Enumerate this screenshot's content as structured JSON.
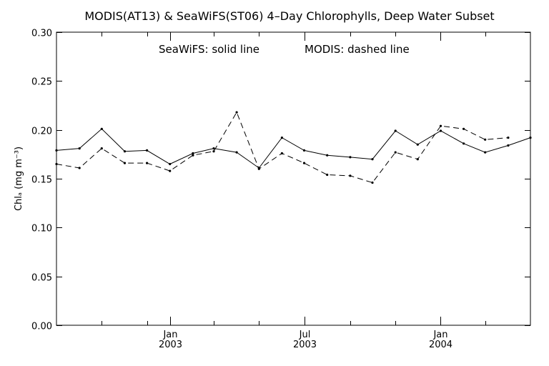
{
  "chart_data": {
    "type": "line",
    "title": "MODIS(AT13) & SeaWiFS(ST06) 4–Day Chlorophylls, Deep Water Subset",
    "annotation_left": "SeaWiFS: solid line",
    "annotation_right": "MODIS: dashed line",
    "ylabel": "Chlₐ (mg m⁻³)",
    "ylim": [
      0.0,
      0.3
    ],
    "xlim": [
      "2002-08-01",
      "2004-05-01"
    ],
    "grid": false,
    "y_ticks": [
      "0.00",
      "0.05",
      "0.10",
      "0.15",
      "0.20",
      "0.25",
      "0.30"
    ],
    "x_major_ticks": [
      {
        "date": "2003-01-01",
        "month": "Jan",
        "year": "2003"
      },
      {
        "date": "2003-07-01",
        "month": "Jul",
        "year": "2003"
      },
      {
        "date": "2004-01-01",
        "month": "Jan",
        "year": "2004"
      }
    ],
    "x_minor_ticks": [
      "2002-10-01",
      "2002-12-01",
      "2003-03-01",
      "2003-05-01",
      "2003-09-01",
      "2003-11-01",
      "2004-03-01"
    ],
    "series": [
      {
        "name": "SeaWiFS",
        "style": "solid",
        "x": [
          "2002-08-01",
          "2002-09-01",
          "2002-10-01",
          "2002-11-01",
          "2002-12-01",
          "2003-01-01",
          "2003-02-01",
          "2003-03-01",
          "2003-04-01",
          "2003-05-01",
          "2003-06-01",
          "2003-07-01",
          "2003-08-01",
          "2003-09-01",
          "2003-10-01",
          "2003-11-01",
          "2003-12-01",
          "2004-01-01",
          "2004-02-01",
          "2004-03-01",
          "2004-04-01",
          "2004-05-01"
        ],
        "values": [
          0.179,
          0.181,
          0.201,
          0.178,
          0.179,
          0.165,
          0.176,
          0.181,
          0.177,
          0.161,
          0.192,
          0.179,
          0.174,
          0.172,
          0.17,
          0.199,
          0.185,
          0.199,
          0.186,
          0.177,
          0.184,
          0.192
        ]
      },
      {
        "name": "MODIS",
        "style": "dashed",
        "x": [
          "2002-08-01",
          "2002-09-01",
          "2002-10-01",
          "2002-11-01",
          "2002-12-01",
          "2003-01-01",
          "2003-02-01",
          "2003-03-01",
          "2003-04-01",
          "2003-05-01",
          "2003-06-01",
          "2003-07-01",
          "2003-08-01",
          "2003-09-01",
          "2003-10-01",
          "2003-11-01",
          "2003-12-01",
          "2004-01-01",
          "2004-02-01",
          "2004-03-01",
          "2004-04-01"
        ],
        "values": [
          0.165,
          0.161,
          0.181,
          0.166,
          0.166,
          0.158,
          0.174,
          0.178,
          0.218,
          0.16,
          0.176,
          0.166,
          0.154,
          0.153,
          0.146,
          0.177,
          0.17,
          0.204,
          0.201,
          0.19,
          0.192
        ]
      }
    ]
  }
}
